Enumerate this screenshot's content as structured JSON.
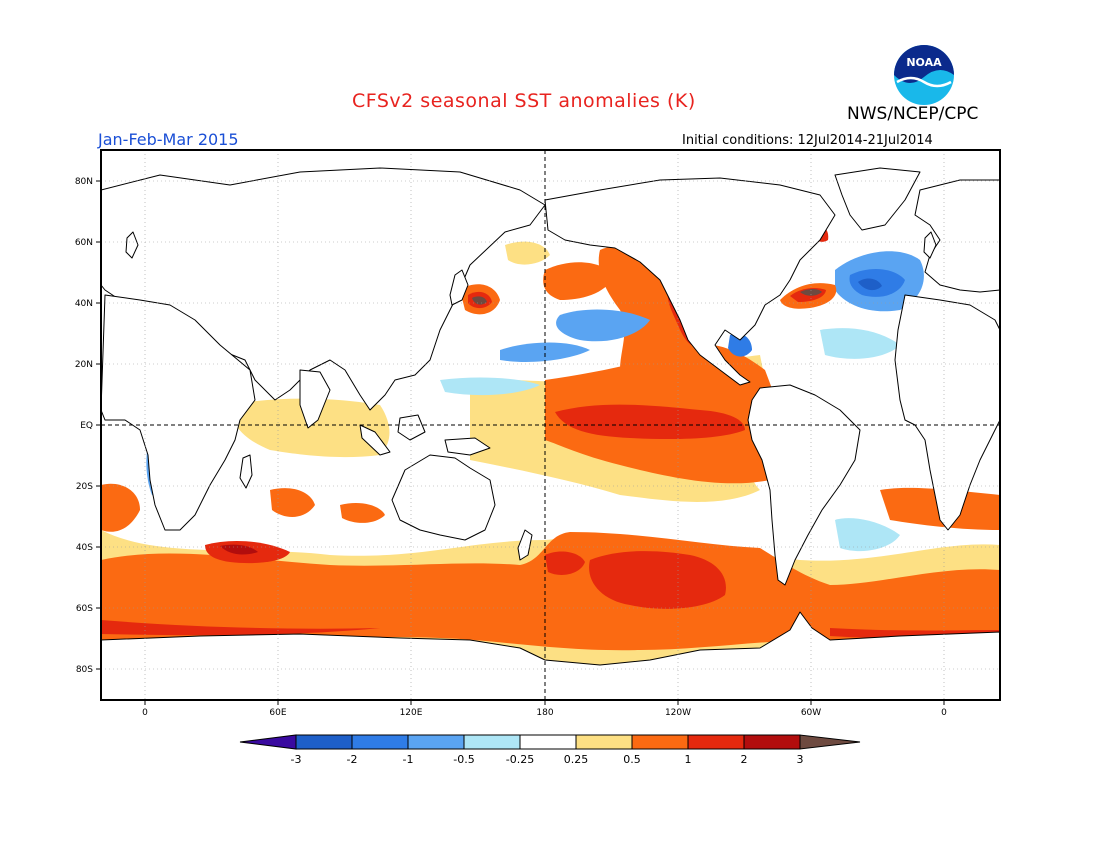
{
  "header": {
    "title": "CFSv2 seasonal SST anomalies (K)",
    "agency": "NWS/NCEP/CPC",
    "season": "Jan-Feb-Mar 2015",
    "initial_conditions": "Initial conditions: 12Jul2014-21Jul2014",
    "logo_text": "NOAA"
  },
  "map": {
    "lat_labels": [
      "80N",
      "60N",
      "40N",
      "20N",
      "EQ",
      "20S",
      "40S",
      "60S",
      "80S"
    ],
    "lon_labels": [
      "0",
      "60E",
      "120E",
      "180",
      "120W",
      "60W",
      "0"
    ]
  },
  "legend": {
    "labels": [
      "-3",
      "-2",
      "-1",
      "-0.5",
      "-0.25",
      "0.25",
      "0.5",
      "1",
      "2",
      "3"
    ],
    "colors": {
      "below_-3": "#3a0aa0",
      "-3_-2": "#1e5fc8",
      "-2_-1": "#2f7ce6",
      "-1_-0.5": "#5aa4f2",
      "-0.5_-0.25": "#aee6f6",
      "-0.25_0.25": "#ffffff",
      "0.25_0.5": "#fde084",
      "0.5_1": "#fb6a12",
      "1_2": "#e5290e",
      "2_3": "#b20d0d",
      "above_3": "#6e4a40"
    }
  }
}
